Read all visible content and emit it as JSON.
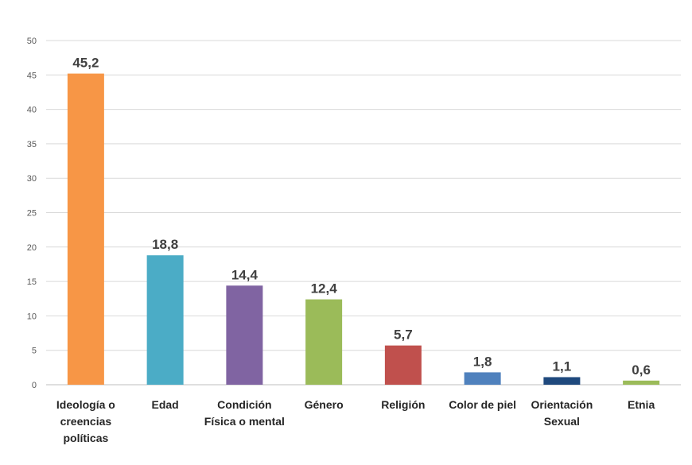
{
  "chart_data": {
    "type": "bar",
    "title": "",
    "xlabel": "",
    "ylabel": "",
    "ylim": [
      0,
      50
    ],
    "yticks": [
      0,
      5,
      10,
      15,
      20,
      25,
      30,
      35,
      40,
      45,
      50
    ],
    "grid": true,
    "categories": [
      [
        "Ideología o",
        "creencias",
        "políticas"
      ],
      [
        "Edad"
      ],
      [
        "Condición",
        "Física o mental"
      ],
      [
        "Género"
      ],
      [
        "Religión"
      ],
      [
        "Color de piel"
      ],
      [
        "Orientación",
        "Sexual"
      ],
      [
        "Etnia"
      ]
    ],
    "values": [
      45.2,
      18.8,
      14.4,
      12.4,
      5.7,
      1.8,
      1.1,
      0.6
    ],
    "labels": [
      "45,2",
      "18,8",
      "14,4",
      "12,4",
      "5,7",
      "1,8",
      "1,1",
      "0,6"
    ],
    "colors": [
      "#F79646",
      "#4BACC6",
      "#8064A2",
      "#9BBB59",
      "#C0504D",
      "#4F81BD",
      "#1F497D",
      "#9BBB59"
    ]
  }
}
